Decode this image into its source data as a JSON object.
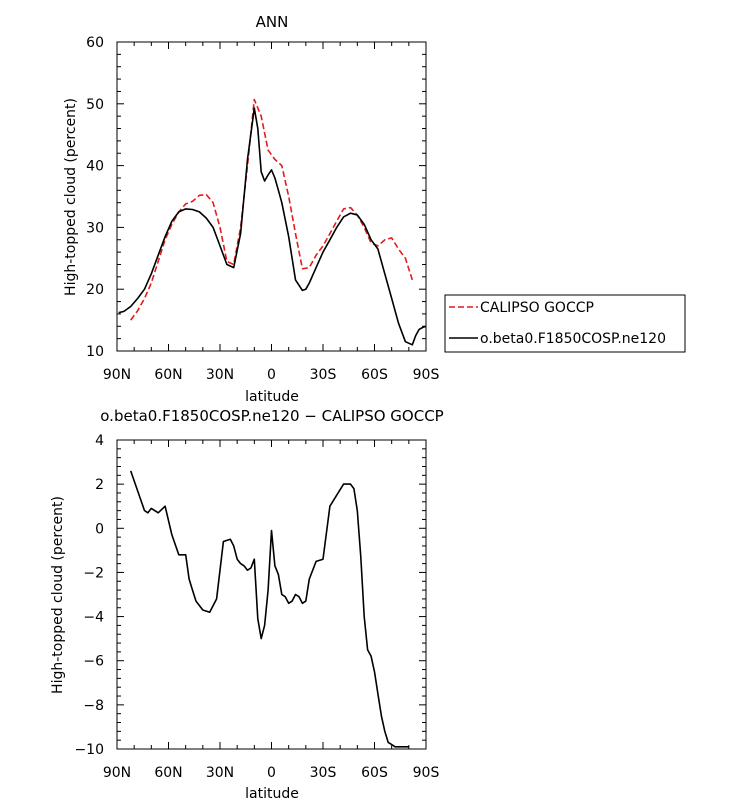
{
  "chart_data": [
    {
      "type": "line",
      "title": "ANN",
      "xlabel": "latitude",
      "ylabel": "High-topped cloud (percent)",
      "xlim": [
        90,
        -90
      ],
      "ylim": [
        10,
        60
      ],
      "x_ticks": [
        {
          "value": 90,
          "label": "90N"
        },
        {
          "value": 60,
          "label": "60N"
        },
        {
          "value": 30,
          "label": "30N"
        },
        {
          "value": 0,
          "label": "0"
        },
        {
          "value": -30,
          "label": "30S"
        },
        {
          "value": -60,
          "label": "60S"
        },
        {
          "value": -90,
          "label": "90S"
        }
      ],
      "y_ticks": [
        10,
        20,
        30,
        40,
        50,
        60
      ],
      "legend_position": "right",
      "series": [
        {
          "name": "CALIPSO GOCCP",
          "color": "#e41a1c",
          "dash": "dashed",
          "x": [
            82,
            78,
            74,
            70,
            66,
            62,
            58,
            54,
            50,
            46,
            42,
            38,
            34,
            30,
            26,
            22,
            18,
            14,
            10,
            6,
            2,
            -2,
            -6,
            -10,
            -14,
            -18,
            -22,
            -26,
            -30,
            -34,
            -38,
            -42,
            -46,
            -50,
            -54,
            -58,
            -62,
            -66,
            -70,
            -74,
            -78,
            -82
          ],
          "values": [
            15.0,
            16.5,
            18.5,
            21.0,
            24.5,
            28.0,
            30.5,
            32.5,
            33.8,
            34.2,
            35.2,
            35.3,
            34.0,
            30.0,
            24.5,
            24.0,
            30.0,
            40.0,
            50.7,
            48.0,
            42.5,
            41.0,
            40.0,
            35.0,
            29.0,
            23.3,
            23.5,
            25.5,
            27.0,
            29.0,
            31.0,
            33.0,
            33.2,
            32.0,
            30.0,
            27.5,
            27.0,
            28.0,
            28.3,
            26.5,
            25.0,
            21.5
          ]
        },
        {
          "name": "o.beta0.F1850COSP.ne120",
          "color": "#000000",
          "dash": "solid",
          "x": [
            89,
            86,
            82,
            78,
            74,
            70,
            66,
            62,
            58,
            54,
            50,
            46,
            42,
            38,
            34,
            30,
            26,
            22,
            18,
            14,
            10,
            8,
            6,
            4,
            2,
            0,
            -2,
            -4,
            -6,
            -10,
            -14,
            -18,
            -20,
            -22,
            -26,
            -30,
            -34,
            -38,
            -42,
            -46,
            -50,
            -54,
            -58,
            -62,
            -66,
            -70,
            -74,
            -78,
            -82,
            -84,
            -86,
            -88,
            -90
          ],
          "values": [
            16.2,
            16.4,
            17.2,
            18.5,
            20.0,
            22.5,
            25.5,
            28.5,
            31.0,
            32.5,
            33.0,
            32.9,
            32.5,
            31.5,
            30.0,
            27.0,
            24.0,
            23.5,
            29.0,
            41.0,
            49.3,
            46.0,
            39.0,
            37.5,
            38.5,
            39.3,
            38.0,
            36.0,
            34.0,
            28.5,
            21.5,
            19.8,
            20.0,
            21.0,
            23.5,
            26.0,
            28.0,
            30.0,
            31.7,
            32.3,
            32.0,
            30.5,
            28.0,
            26.5,
            22.5,
            18.5,
            14.5,
            11.5,
            11.0,
            12.5,
            13.5,
            13.8,
            14.0
          ]
        }
      ]
    },
    {
      "type": "line",
      "title": "o.beta0.F1850COSP.ne120 − CALIPSO GOCCP",
      "xlabel": "latitude",
      "ylabel": "High-topped cloud (percent)",
      "xlim": [
        90,
        -90
      ],
      "ylim": [
        -10,
        4
      ],
      "x_ticks": [
        {
          "value": 90,
          "label": "90N"
        },
        {
          "value": 60,
          "label": "60N"
        },
        {
          "value": 30,
          "label": "30N"
        },
        {
          "value": 0,
          "label": "0"
        },
        {
          "value": -30,
          "label": "30S"
        },
        {
          "value": -60,
          "label": "60S"
        },
        {
          "value": -90,
          "label": "90S"
        }
      ],
      "y_ticks": [
        -10,
        -8,
        -6,
        -4,
        -2,
        0,
        2,
        4
      ],
      "series": [
        {
          "color": "#000000",
          "dash": "solid",
          "x": [
            82,
            78,
            74,
            72,
            70,
            66,
            62,
            58,
            54,
            50,
            48,
            46,
            44,
            40,
            36,
            32,
            28,
            24,
            22,
            20,
            18,
            16,
            14,
            12,
            10,
            8,
            6,
            4,
            2,
            0,
            -2,
            -4,
            -6,
            -8,
            -10,
            -12,
            -14,
            -16,
            -18,
            -20,
            -22,
            -26,
            -30,
            -34,
            -38,
            -42,
            -46,
            -48,
            -50,
            -52,
            -54,
            -56,
            -58,
            -60,
            -62,
            -64,
            -66,
            -68,
            -70,
            -72,
            -74,
            -76,
            -78,
            -80
          ],
          "values": [
            2.6,
            1.7,
            0.8,
            0.7,
            0.9,
            0.7,
            1.0,
            -0.3,
            -1.2,
            -1.2,
            -2.3,
            -2.8,
            -3.3,
            -3.7,
            -3.8,
            -3.2,
            -0.6,
            -0.5,
            -0.8,
            -1.4,
            -1.6,
            -1.7,
            -1.9,
            -1.8,
            -1.4,
            -4.1,
            -5.0,
            -4.4,
            -2.8,
            -0.1,
            -1.7,
            -2.1,
            -3.0,
            -3.1,
            -3.4,
            -3.3,
            -3.0,
            -3.1,
            -3.4,
            -3.3,
            -2.3,
            -1.5,
            -1.4,
            1.0,
            1.5,
            2.0,
            2.0,
            1.8,
            0.8,
            -1.3,
            -4.0,
            -5.5,
            -5.8,
            -6.5,
            -7.5,
            -8.5,
            -9.2,
            -9.7,
            -9.8,
            -9.9,
            -9.9,
            -9.9,
            -9.9,
            -9.9
          ]
        }
      ]
    }
  ]
}
